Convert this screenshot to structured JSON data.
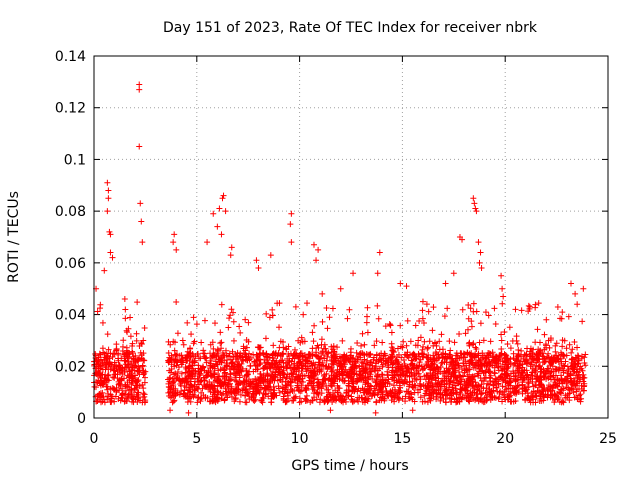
{
  "chart_data": {
    "type": "scatter",
    "title": "Day 151 of 2023, Rate Of TEC Index for receiver nbrk",
    "xlabel": "GPS time / hours",
    "ylabel": "ROTI / TECUs",
    "xlim": [
      0,
      25
    ],
    "ylim": [
      0,
      0.14
    ],
    "x_ticks": [
      0,
      5,
      10,
      15,
      20,
      25
    ],
    "x_tick_labels": [
      "0",
      "5",
      "10",
      "15",
      "20",
      "25"
    ],
    "y_ticks": [
      0,
      0.02,
      0.04,
      0.06,
      0.08,
      0.1,
      0.12,
      0.14
    ],
    "y_tick_labels": [
      "0",
      "0.02",
      "0.04",
      "0.06",
      "0.08",
      "0.1",
      "0.12",
      "0.14"
    ],
    "grid": true,
    "marker": "plus",
    "series_color": "#ff0000",
    "series": [
      {
        "name": "ROTI",
        "segments": [
          {
            "x_start": 0.0,
            "x_end": 2.5,
            "base": 0.017,
            "spread": 0.012
          },
          {
            "x_start": 3.6,
            "x_end": 23.9,
            "base": 0.018,
            "spread": 0.012
          }
        ],
        "outliers": [
          {
            "x": 2.2,
            "y": 0.129
          },
          {
            "x": 2.2,
            "y": 0.127
          },
          {
            "x": 2.2,
            "y": 0.105
          },
          {
            "x": 2.25,
            "y": 0.083
          },
          {
            "x": 2.3,
            "y": 0.076
          },
          {
            "x": 2.35,
            "y": 0.068
          },
          {
            "x": 0.65,
            "y": 0.091
          },
          {
            "x": 0.7,
            "y": 0.088
          },
          {
            "x": 0.7,
            "y": 0.085
          },
          {
            "x": 0.65,
            "y": 0.08
          },
          {
            "x": 0.75,
            "y": 0.072
          },
          {
            "x": 0.8,
            "y": 0.071
          },
          {
            "x": 0.8,
            "y": 0.064
          },
          {
            "x": 0.9,
            "y": 0.062
          },
          {
            "x": 0.5,
            "y": 0.057
          },
          {
            "x": 5.8,
            "y": 0.079
          },
          {
            "x": 6.1,
            "y": 0.081
          },
          {
            "x": 6.3,
            "y": 0.086
          },
          {
            "x": 6.25,
            "y": 0.085
          },
          {
            "x": 6.4,
            "y": 0.08
          },
          {
            "x": 6.0,
            "y": 0.074
          },
          {
            "x": 6.2,
            "y": 0.071
          },
          {
            "x": 5.5,
            "y": 0.068
          },
          {
            "x": 3.9,
            "y": 0.071
          },
          {
            "x": 3.85,
            "y": 0.068
          },
          {
            "x": 4.0,
            "y": 0.065
          },
          {
            "x": 6.7,
            "y": 0.066
          },
          {
            "x": 6.65,
            "y": 0.063
          },
          {
            "x": 7.9,
            "y": 0.061
          },
          {
            "x": 8.6,
            "y": 0.063
          },
          {
            "x": 9.6,
            "y": 0.079
          },
          {
            "x": 9.55,
            "y": 0.075
          },
          {
            "x": 9.6,
            "y": 0.068
          },
          {
            "x": 10.7,
            "y": 0.067
          },
          {
            "x": 10.9,
            "y": 0.065
          },
          {
            "x": 10.8,
            "y": 0.061
          },
          {
            "x": 13.9,
            "y": 0.064
          },
          {
            "x": 13.8,
            "y": 0.056
          },
          {
            "x": 14.9,
            "y": 0.052
          },
          {
            "x": 15.2,
            "y": 0.051
          },
          {
            "x": 12.6,
            "y": 0.056
          },
          {
            "x": 11.1,
            "y": 0.048
          },
          {
            "x": 17.1,
            "y": 0.052
          },
          {
            "x": 17.5,
            "y": 0.056
          },
          {
            "x": 17.8,
            "y": 0.07
          },
          {
            "x": 17.9,
            "y": 0.069
          },
          {
            "x": 18.45,
            "y": 0.085
          },
          {
            "x": 18.5,
            "y": 0.083
          },
          {
            "x": 18.55,
            "y": 0.081
          },
          {
            "x": 18.6,
            "y": 0.08
          },
          {
            "x": 18.7,
            "y": 0.068
          },
          {
            "x": 18.8,
            "y": 0.064
          },
          {
            "x": 18.75,
            "y": 0.06
          },
          {
            "x": 18.85,
            "y": 0.058
          },
          {
            "x": 19.8,
            "y": 0.055
          },
          {
            "x": 19.85,
            "y": 0.05
          },
          {
            "x": 19.9,
            "y": 0.047
          },
          {
            "x": 21.2,
            "y": 0.043
          },
          {
            "x": 22.0,
            "y": 0.038
          },
          {
            "x": 23.2,
            "y": 0.052
          },
          {
            "x": 23.4,
            "y": 0.048
          },
          {
            "x": 23.8,
            "y": 0.05
          },
          {
            "x": 23.5,
            "y": 0.044
          },
          {
            "x": 0.1,
            "y": 0.05
          },
          {
            "x": 1.5,
            "y": 0.046
          },
          {
            "x": 8.0,
            "y": 0.058
          },
          {
            "x": 12.0,
            "y": 0.05
          },
          {
            "x": 16.0,
            "y": 0.045
          },
          {
            "x": 20.5,
            "y": 0.042
          },
          {
            "x": 3.7,
            "y": 0.003
          },
          {
            "x": 4.6,
            "y": 0.002
          },
          {
            "x": 13.7,
            "y": 0.002
          },
          {
            "x": 15.5,
            "y": 0.003
          },
          {
            "x": 11.5,
            "y": 0.003
          }
        ]
      }
    ]
  }
}
